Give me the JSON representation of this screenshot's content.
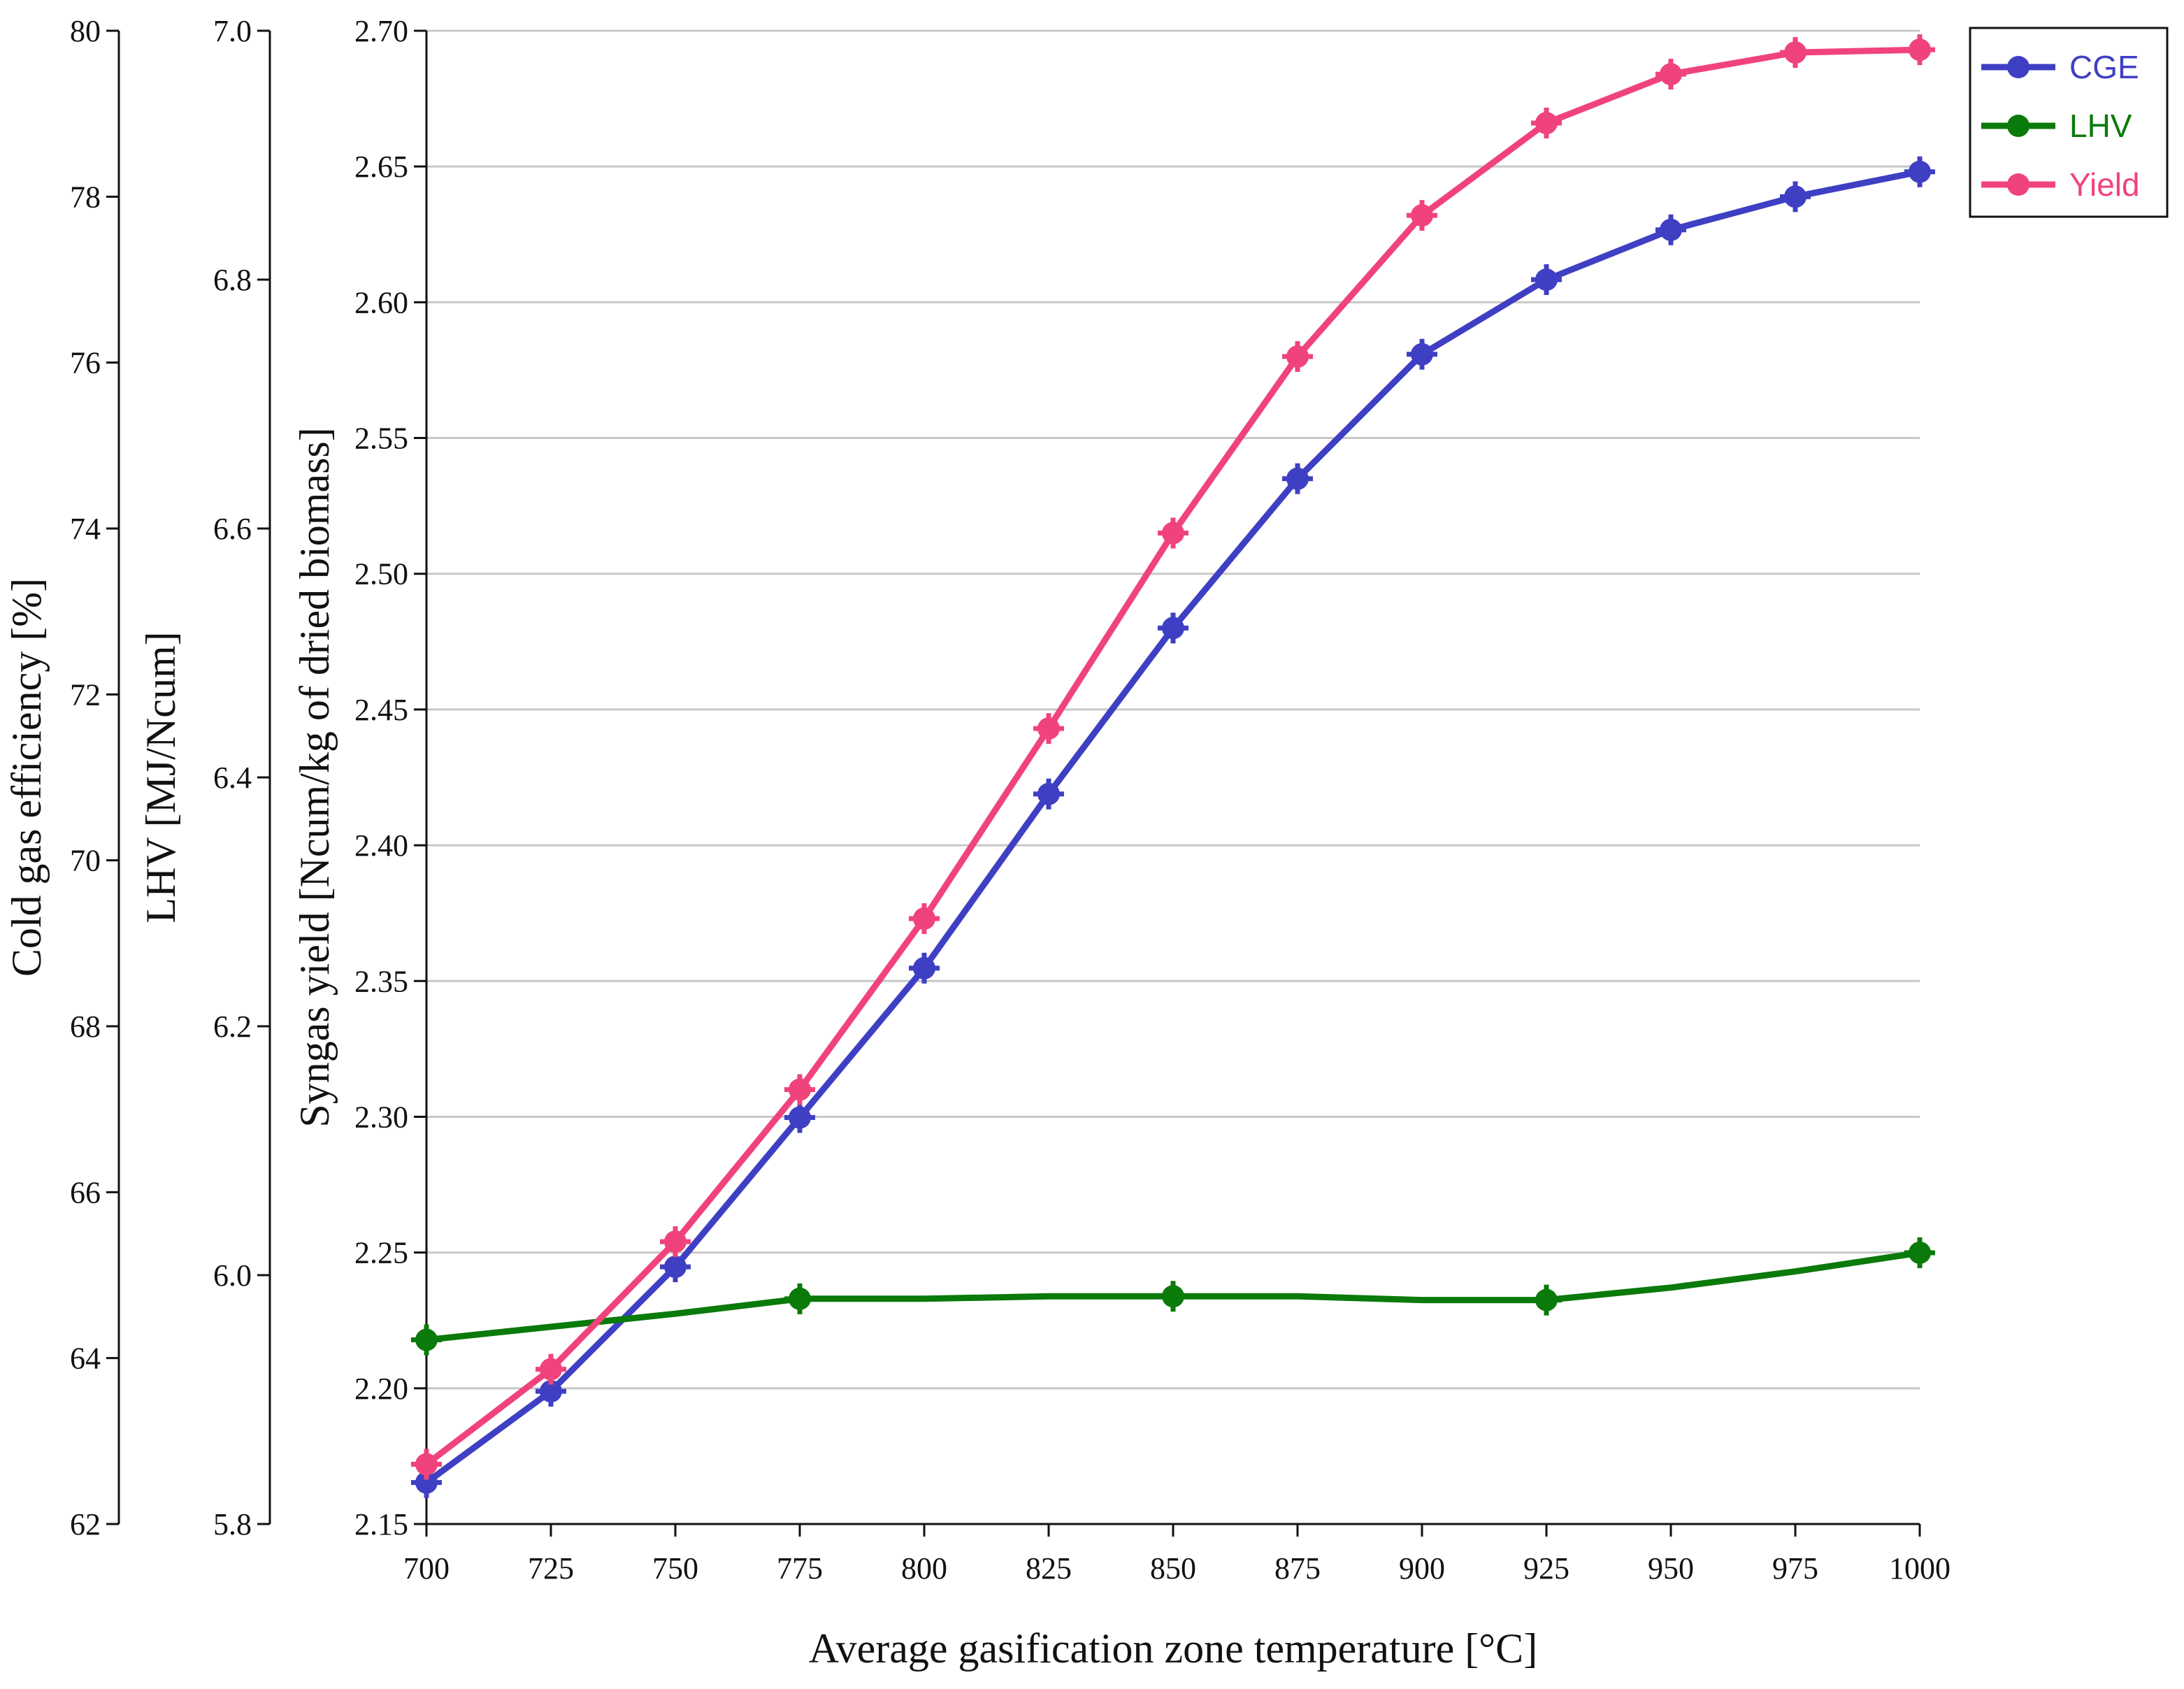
{
  "chart_data": {
    "type": "line",
    "title": "",
    "xlabel": "Average gasification zone temperature  [°C]",
    "x": [
      700,
      725,
      750,
      775,
      800,
      825,
      850,
      875,
      900,
      925,
      950,
      975,
      1000
    ],
    "xticks": [
      "700",
      "725",
      "750",
      "775",
      "800",
      "825",
      "850",
      "875",
      "900",
      "925",
      "950",
      "975",
      "1000"
    ],
    "axes": [
      {
        "id": "cge",
        "label": "Cold gas efficiency [%]",
        "ylim": [
          62,
          80
        ],
        "ticks": [
          "62",
          "64",
          "66",
          "68",
          "70",
          "72",
          "74",
          "76",
          "78",
          "80"
        ]
      },
      {
        "id": "lhv",
        "label": "LHV [MJ/Ncum]",
        "ylim": [
          5.8,
          7.0
        ],
        "ticks": [
          "5.8",
          "6.0",
          "6.2",
          "6.4",
          "6.6",
          "6.8",
          "7.0"
        ]
      },
      {
        "id": "yield",
        "label": "Syngas yield [Ncum/kg of dried biomass]",
        "ylim": [
          2.15,
          2.7
        ],
        "ticks": [
          "2.15",
          "2.20",
          "2.25",
          "2.30",
          "2.35",
          "2.40",
          "2.45",
          "2.50",
          "2.55",
          "2.60",
          "2.65",
          "2.70"
        ]
      }
    ],
    "grid": true,
    "legend_position": "top-right",
    "series": [
      {
        "name": "CGE",
        "axis": "cge",
        "color": "#3f3fc4",
        "marker_x": [
          700,
          725,
          750,
          775,
          800,
          825,
          850,
          875,
          900,
          925,
          950,
          975,
          1000
        ],
        "x": [
          700,
          725,
          750,
          775,
          800,
          825,
          850,
          875,
          900,
          925,
          950,
          975,
          1000
        ],
        "values": [
          62.5,
          63.6,
          65.1,
          66.9,
          68.7,
          70.8,
          72.8,
          74.6,
          76.1,
          77.0,
          77.6,
          78.0,
          78.3
        ]
      },
      {
        "name": "LHV",
        "axis": "lhv",
        "color": "#0a7a0a",
        "marker_x": [
          700,
          775,
          850,
          925,
          1000
        ],
        "x": [
          700,
          750,
          775,
          800,
          825,
          850,
          875,
          900,
          925,
          950,
          975,
          1000
        ],
        "values": [
          5.948,
          5.969,
          5.981,
          5.981,
          5.983,
          5.983,
          5.983,
          5.98,
          5.98,
          5.99,
          6.003,
          6.018
        ]
      },
      {
        "name": "Yield",
        "axis": "yield",
        "color": "#f0437c",
        "marker_x": [
          700,
          725,
          750,
          775,
          800,
          825,
          850,
          875,
          900,
          925,
          950,
          975,
          1000
        ],
        "x": [
          700,
          725,
          750,
          775,
          800,
          825,
          850,
          875,
          900,
          925,
          950,
          975,
          1000
        ],
        "values": [
          2.172,
          2.207,
          2.254,
          2.31,
          2.373,
          2.443,
          2.515,
          2.58,
          2.632,
          2.666,
          2.684,
          2.692,
          2.693
        ]
      }
    ]
  }
}
